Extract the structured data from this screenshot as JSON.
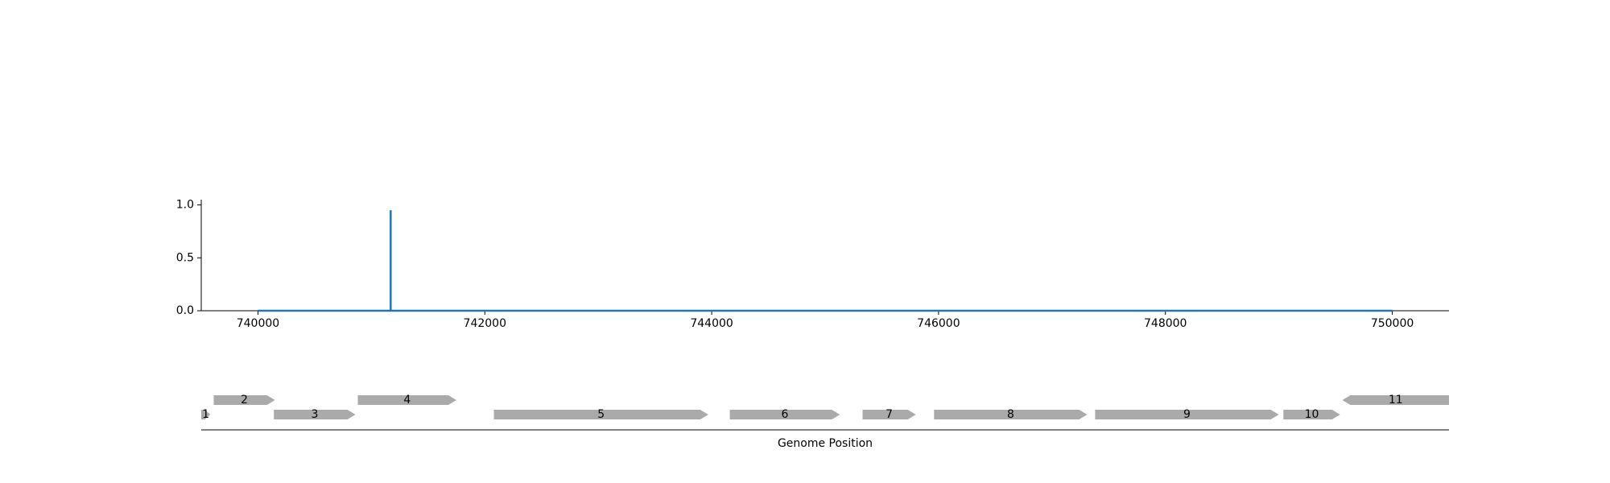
{
  "chart_data": [
    {
      "type": "line",
      "title": "",
      "xlabel": "",
      "ylabel": "",
      "xlim": [
        739500,
        750500
      ],
      "ylim": [
        0,
        1.05
      ],
      "grid": false,
      "x_ticks": [
        740000,
        742000,
        744000,
        746000,
        748000,
        750000
      ],
      "x_tick_labels": [
        "740000",
        "742000",
        "744000",
        "746000",
        "748000",
        "750000"
      ],
      "y_ticks": [
        0.0,
        0.5,
        1.0
      ],
      "y_tick_labels": [
        "0.0",
        "0.5",
        "1.0"
      ],
      "color": "#1f77b4",
      "series": [
        {
          "x": [
            740000,
            741170,
            741170,
            741170,
            750000
          ],
          "y": [
            0.0,
            0.0,
            0.95,
            0.0,
            0.0
          ]
        }
      ]
    },
    {
      "type": "gene-track",
      "xlabel": "Genome Position",
      "xlim": [
        739500,
        750500
      ],
      "color": "#aaaaaa",
      "genes": [
        {
          "label": "1",
          "start": 739500,
          "end": 739580,
          "strand": "+",
          "row": 0
        },
        {
          "label": "2",
          "start": 739610,
          "end": 740150,
          "strand": "+",
          "row": 1
        },
        {
          "label": "3",
          "start": 740140,
          "end": 740860,
          "strand": "+",
          "row": 0
        },
        {
          "label": "4",
          "start": 740880,
          "end": 741750,
          "strand": "+",
          "row": 1
        },
        {
          "label": "5",
          "start": 742080,
          "end": 743970,
          "strand": "+",
          "row": 0
        },
        {
          "label": "6",
          "start": 744160,
          "end": 745130,
          "strand": "+",
          "row": 0
        },
        {
          "label": "7",
          "start": 745330,
          "end": 745800,
          "strand": "+",
          "row": 0
        },
        {
          "label": "8",
          "start": 745960,
          "end": 747310,
          "strand": "+",
          "row": 0
        },
        {
          "label": "9",
          "start": 747380,
          "end": 749000,
          "strand": "+",
          "row": 0
        },
        {
          "label": "10",
          "start": 749040,
          "end": 749540,
          "strand": "+",
          "row": 0
        },
        {
          "label": "11",
          "start": 749560,
          "end": 750500,
          "strand": "-",
          "row": 1
        }
      ]
    }
  ]
}
